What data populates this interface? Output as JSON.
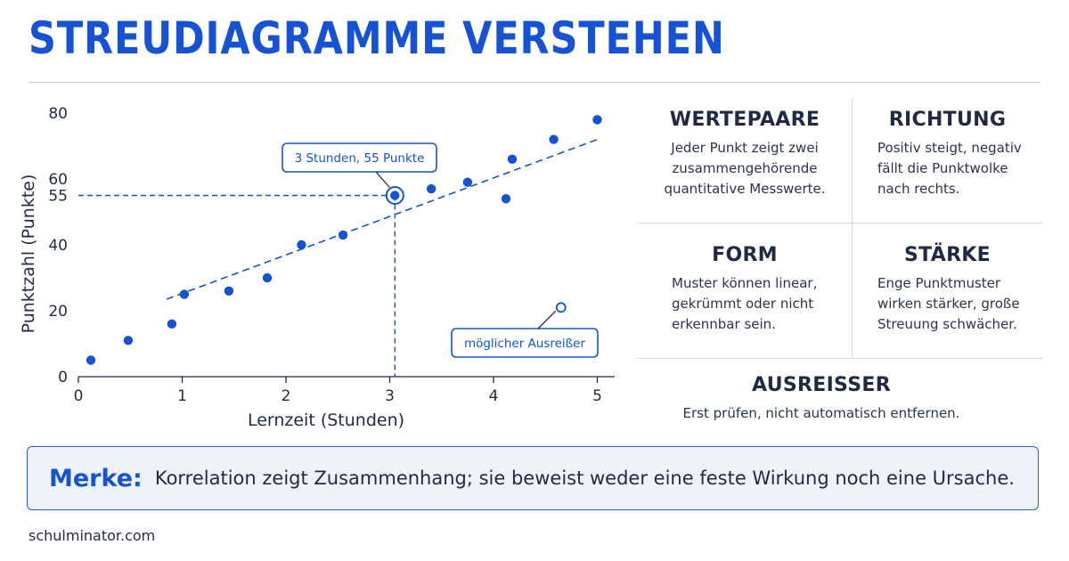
{
  "title": "STREUDIAGRAMME VERSTEHEN",
  "chart_data": {
    "type": "scatter",
    "xlabel": "Lernzeit (Stunden)",
    "ylabel": "Punktzahl (Punkte)",
    "xlim": [
      0,
      5.15
    ],
    "ylim": [
      0,
      84
    ],
    "x_ticks": [
      0,
      1,
      2,
      3,
      4,
      5
    ],
    "y_ticks": [
      0,
      20,
      40,
      55,
      60,
      80
    ],
    "grid": false,
    "points": [
      {
        "x": 0.12,
        "y": 5
      },
      {
        "x": 0.48,
        "y": 11
      },
      {
        "x": 0.9,
        "y": 16
      },
      {
        "x": 1.02,
        "y": 25
      },
      {
        "x": 1.45,
        "y": 26
      },
      {
        "x": 1.82,
        "y": 30
      },
      {
        "x": 2.15,
        "y": 40
      },
      {
        "x": 2.55,
        "y": 43
      },
      {
        "x": 3.05,
        "y": 55
      },
      {
        "x": 3.4,
        "y": 57
      },
      {
        "x": 3.75,
        "y": 59
      },
      {
        "x": 4.12,
        "y": 54
      },
      {
        "x": 4.18,
        "y": 66
      },
      {
        "x": 4.58,
        "y": 72
      },
      {
        "x": 5.0,
        "y": 78
      }
    ],
    "outlier": {
      "x": 4.65,
      "y": 21
    },
    "trendline": {
      "x": [
        0.85,
        5.0
      ],
      "y": [
        23.5,
        72
      ]
    },
    "highlight": {
      "x": 3.05,
      "y": 55,
      "label": "3 Stunden, 55 Punkte"
    },
    "outlier_label": "möglicher Ausreißer"
  },
  "cards": [
    {
      "title": "WERTEPAARE",
      "lines": [
        "Jeder Punkt zeigt zwei",
        "zusammengehörende",
        "quantitative Messwerte."
      ]
    },
    {
      "title": "RICHTUNG",
      "lines": [
        "Positiv steigt, negativ",
        "fällt die Punktwolke",
        "nach rechts."
      ]
    },
    {
      "title": "FORM",
      "lines": [
        "Muster können linear,",
        "gekrümmt oder nicht",
        "erkennbar sein."
      ]
    },
    {
      "title": "STÄRKE",
      "lines": [
        "Enge Punktmuster",
        "wirken stärker, große",
        "Streuung schwächer."
      ]
    },
    {
      "title": "AUSREISSER",
      "lines": [
        "Erst prüfen, nicht automatisch entfernen."
      ]
    }
  ],
  "merke": {
    "label": "Merke:",
    "text": "Korrelation zeigt Zusammenhang; sie beweist weder eine feste Wirkung noch eine Ursache."
  },
  "footer": "schulminator.com",
  "colors": {
    "accent": "#1652d4",
    "point": "#1652d4",
    "text": "#1f2a44",
    "box_fill": "#eef3fb"
  }
}
